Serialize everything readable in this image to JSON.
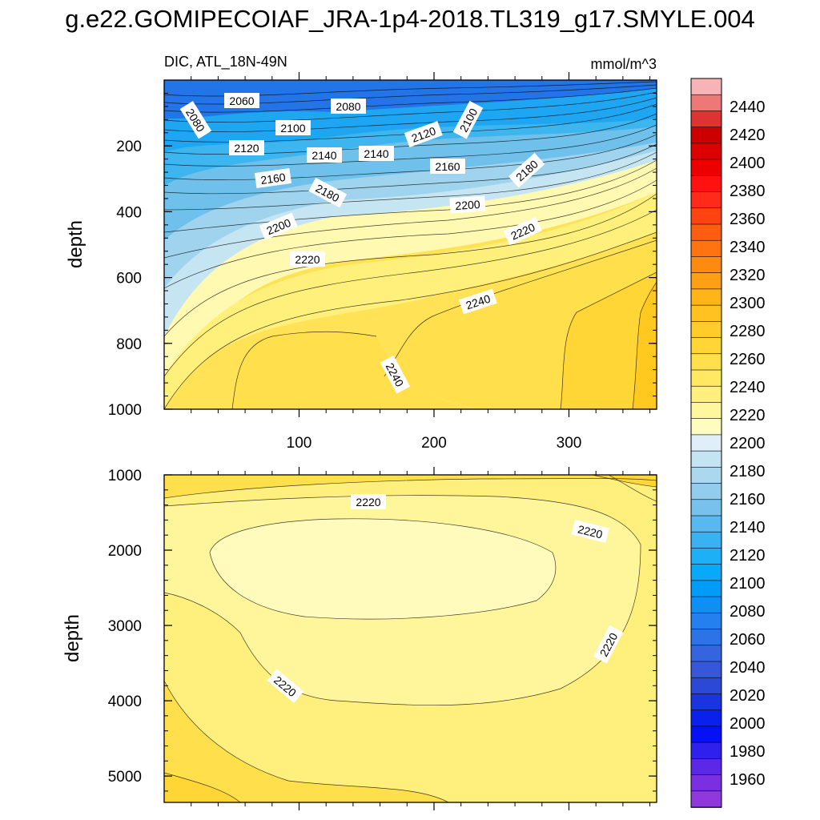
{
  "title": "g.e22.GOMIPECOIAF_JRA-1p4-2018.TL319_g17.SMYLE.004",
  "chart_data": [
    {
      "type": "contour",
      "panel": "upper",
      "left_label": "DIC, ATL_18N-49N",
      "right_label": "mmol/m^3",
      "ylabel": "depth",
      "xlabel": "",
      "ylim": [
        1000,
        0
      ],
      "y_ticks": [
        200,
        400,
        600,
        800,
        1000
      ],
      "xlim": [
        0,
        365
      ],
      "x_ticks": [
        100,
        200,
        300
      ],
      "y_reversed": true,
      "contour_labels": [
        "2060",
        "2080",
        "2080",
        "2100",
        "2100",
        "2120",
        "2120",
        "2140",
        "2140",
        "2160",
        "2160",
        "2180",
        "2180",
        "2200",
        "2200",
        "2220",
        "2220",
        "2240",
        "2240"
      ]
    },
    {
      "type": "contour",
      "panel": "lower",
      "ylabel": "depth",
      "xlabel": "",
      "ylim": [
        5350,
        1000
      ],
      "y_ticks": [
        1000,
        2000,
        3000,
        4000,
        5000
      ],
      "xlim": [
        0,
        365
      ],
      "y_reversed": true,
      "contour_labels": [
        "2220",
        "2220",
        "2220",
        "2220"
      ]
    }
  ],
  "colorbar": {
    "labels": [
      "2440",
      "2420",
      "2400",
      "2380",
      "2360",
      "2340",
      "2320",
      "2300",
      "2280",
      "2260",
      "2240",
      "2220",
      "2200",
      "2180",
      "2160",
      "2140",
      "2120",
      "2100",
      "2080",
      "2060",
      "2040",
      "2020",
      "2000",
      "1980",
      "1960"
    ],
    "colors_top_to_bottom": [
      "#f8b3b7",
      "#ee7777",
      "#dd3333",
      "#cc0000",
      "#dd0000",
      "#ee0000",
      "#ff1111",
      "#ff2a1a",
      "#ff4411",
      "#ff5e10",
      "#ff7411",
      "#ff8a11",
      "#ffa014",
      "#ffb41a",
      "#ffc220",
      "#ffcc2a",
      "#ffd636",
      "#ffe04c",
      "#ffe962",
      "#fff07e",
      "#fff79e",
      "#fffcc0",
      "#dfeef8",
      "#c4e3f3",
      "#acd8ef",
      "#93cdeb",
      "#77c1ec",
      "#5ab8f0",
      "#38b2f3",
      "#1eb0f6",
      "#0aa8f8",
      "#009cf8",
      "#0f8ef4",
      "#2380ee",
      "#2d72e6",
      "#3565de",
      "#3557d8",
      "#2b48d6",
      "#1a35e0",
      "#0a20ec",
      "#0510f6",
      "#3020ee",
      "#5a28e6",
      "#7a30e0",
      "#8e38de"
    ]
  },
  "colors": {
    "deep_blue": "#2470e4",
    "cyan": "#1ab3f0",
    "light_blue": "#aad8f0",
    "pale_yellow": "#fffab8",
    "yellow": "#fff07e",
    "gold": "#ffd636",
    "orange_gold": "#ffbf20"
  }
}
